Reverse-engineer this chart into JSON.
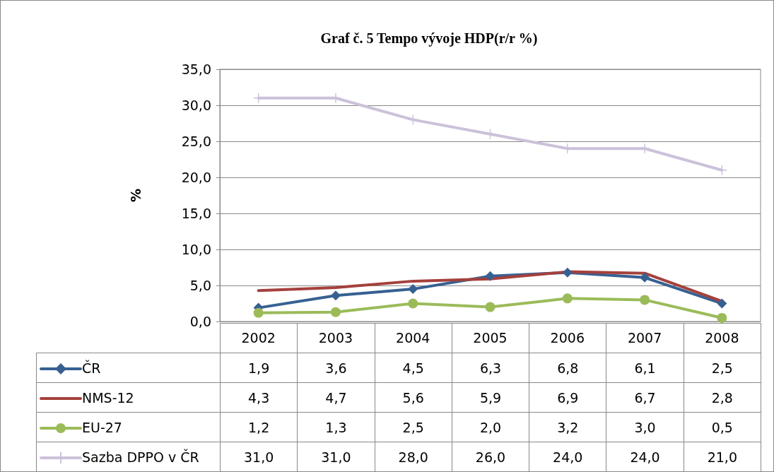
{
  "chart_data": {
    "type": "line",
    "title": "Graf č. 5 Tempo vývoje HDP(r/r %)",
    "ylabel": "%",
    "categories": [
      "2002",
      "2003",
      "2004",
      "2005",
      "2006",
      "2007",
      "2008"
    ],
    "series": [
      {
        "name": "ČR",
        "color": "#376092",
        "marker": "diamond",
        "values": [
          1.9,
          3.6,
          4.5,
          6.3,
          6.8,
          6.1,
          2.5
        ],
        "value_labels": [
          "1,9",
          "3,6",
          "4,5",
          "6,3",
          "6,8",
          "6,1",
          "2,5"
        ]
      },
      {
        "name": "NMS-12",
        "color": "#a5403c",
        "marker": "none",
        "values": [
          4.3,
          4.7,
          5.6,
          5.9,
          6.9,
          6.7,
          2.8
        ],
        "value_labels": [
          "4,3",
          "4,7",
          "5,6",
          "5,9",
          "6,9",
          "6,7",
          "2,8"
        ]
      },
      {
        "name": "EU-27",
        "color": "#9bbb59",
        "marker": "circle",
        "values": [
          1.2,
          1.3,
          2.5,
          2.0,
          3.2,
          3.0,
          0.5
        ],
        "value_labels": [
          "1,2",
          "1,3",
          "2,5",
          "2,0",
          "3,2",
          "3,0",
          "0,5"
        ]
      },
      {
        "name": "Sazba DPPO v ČR",
        "color": "#ccc1da",
        "marker": "cross",
        "values": [
          31.0,
          31.0,
          28.0,
          26.0,
          24.0,
          24.0,
          21.0
        ],
        "value_labels": [
          "31,0",
          "31,0",
          "28,0",
          "26,0",
          "24,0",
          "24,0",
          "21,0"
        ]
      }
    ],
    "ylim": [
      0,
      35
    ],
    "yticks": [
      {
        "value": 0,
        "label": "0,0"
      },
      {
        "value": 5,
        "label": "5,0"
      },
      {
        "value": 10,
        "label": "10,0"
      },
      {
        "value": 15,
        "label": "15,0"
      },
      {
        "value": 20,
        "label": "20,0"
      },
      {
        "value": 25,
        "label": "25,0"
      },
      {
        "value": 30,
        "label": "30,0"
      },
      {
        "value": 35,
        "label": "35,0"
      }
    ],
    "grid": "y",
    "legend": "bottom",
    "line_style": "solid"
  }
}
